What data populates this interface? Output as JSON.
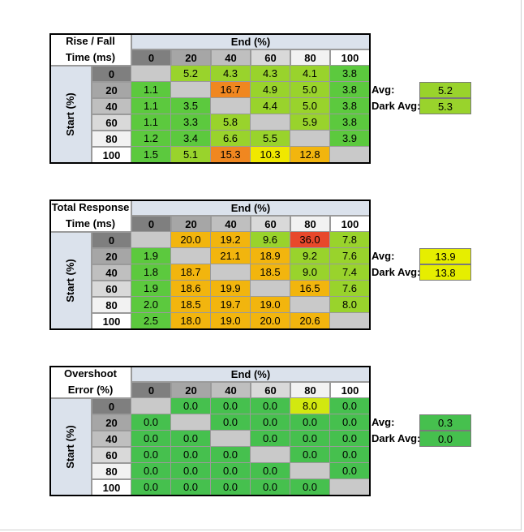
{
  "chart_data": [
    {
      "type": "table",
      "title_lines": [
        "Rise / Fall",
        "Time (ms)"
      ],
      "col_header": "End (%)",
      "row_header": "Start (%)",
      "cols": [
        "0",
        "20",
        "40",
        "60",
        "80",
        "100"
      ],
      "rows": [
        "0",
        "20",
        "40",
        "60",
        "80",
        "100"
      ],
      "values": [
        [
          "",
          "5.2",
          "4.3",
          "4.3",
          "4.1",
          "3.8"
        ],
        [
          "1.1",
          "",
          "16.7",
          "4.9",
          "5.0",
          "3.8"
        ],
        [
          "1.1",
          "3.5",
          "",
          "4.4",
          "5.0",
          "3.8"
        ],
        [
          "1.1",
          "3.3",
          "5.8",
          "",
          "5.9",
          "3.8"
        ],
        [
          "1.2",
          "3.4",
          "6.6",
          "5.5",
          "",
          "3.9"
        ],
        [
          "1.5",
          "5.1",
          "15.3",
          "10.3",
          "12.8",
          ""
        ]
      ],
      "colors": [
        [
          "#c9c9c9",
          "#99d32c",
          "#99d32c",
          "#99d32c",
          "#99d32c",
          "#5cc93e"
        ],
        [
          "#5cc93e",
          "#c9c9c9",
          "#f08720",
          "#99d32c",
          "#99d32c",
          "#5cc93e"
        ],
        [
          "#5cc93e",
          "#5cc93e",
          "#c9c9c9",
          "#99d32c",
          "#99d32c",
          "#5cc93e"
        ],
        [
          "#5cc93e",
          "#5cc93e",
          "#99d32c",
          "#c9c9c9",
          "#99d32c",
          "#5cc93e"
        ],
        [
          "#5cc93e",
          "#5cc93e",
          "#99d32c",
          "#99d32c",
          "#c9c9c9",
          "#5cc93e"
        ],
        [
          "#5cc93e",
          "#99d32c",
          "#f08720",
          "#f0e800",
          "#f2b50e",
          "#c9c9c9"
        ]
      ],
      "avg_label": "Avg:",
      "avg_value": "5.2",
      "avg_color": "#99d32c",
      "dark_avg_label": "Dark Avg:",
      "dark_avg_value": "5.3",
      "dark_avg_color": "#99d32c"
    },
    {
      "type": "table",
      "title_lines": [
        "Total Response",
        "Time (ms)"
      ],
      "col_header": "End (%)",
      "row_header": "Start (%)",
      "cols": [
        "0",
        "20",
        "40",
        "60",
        "80",
        "100"
      ],
      "rows": [
        "0",
        "20",
        "40",
        "60",
        "80",
        "100"
      ],
      "values": [
        [
          "",
          "20.0",
          "19.2",
          "9.6",
          "36.0",
          "7.8"
        ],
        [
          "1.9",
          "",
          "21.1",
          "18.9",
          "9.2",
          "7.6"
        ],
        [
          "1.8",
          "18.7",
          "",
          "18.5",
          "9.0",
          "7.4"
        ],
        [
          "1.9",
          "18.6",
          "19.9",
          "",
          "16.5",
          "7.6"
        ],
        [
          "2.0",
          "18.5",
          "19.7",
          "19.0",
          "",
          "8.0"
        ],
        [
          "2.5",
          "18.0",
          "19.0",
          "20.0",
          "20.6",
          ""
        ]
      ],
      "colors": [
        [
          "#c9c9c9",
          "#f2b50e",
          "#f2b50e",
          "#99d32c",
          "#e8482b",
          "#99d32c"
        ],
        [
          "#5cc93e",
          "#c9c9c9",
          "#f2b50e",
          "#f2b50e",
          "#99d32c",
          "#99d32c"
        ],
        [
          "#5cc93e",
          "#f2b50e",
          "#c9c9c9",
          "#f2b50e",
          "#99d32c",
          "#99d32c"
        ],
        [
          "#5cc93e",
          "#f2b50e",
          "#f2b50e",
          "#c9c9c9",
          "#f2b50e",
          "#99d32c"
        ],
        [
          "#5cc93e",
          "#f2b50e",
          "#f2b50e",
          "#f2b50e",
          "#c9c9c9",
          "#99d32c"
        ],
        [
          "#5cc93e",
          "#f2b50e",
          "#f2b50e",
          "#f2b50e",
          "#f2b50e",
          "#c9c9c9"
        ]
      ],
      "avg_label": "Avg:",
      "avg_value": "13.9",
      "avg_color": "#e6ee00",
      "dark_avg_label": "Dark Avg:",
      "dark_avg_value": "13.8",
      "dark_avg_color": "#e6ee00"
    },
    {
      "type": "table",
      "title_lines": [
        "Overshoot",
        "Error (%)"
      ],
      "col_header": "End (%)",
      "row_header": "Start (%)",
      "cols": [
        "0",
        "20",
        "40",
        "60",
        "80",
        "100"
      ],
      "rows": [
        "0",
        "20",
        "40",
        "60",
        "80",
        "100"
      ],
      "values": [
        [
          "",
          "0.0",
          "0.0",
          "0.0",
          "8.0",
          "0.0"
        ],
        [
          "0.0",
          "",
          "0.0",
          "0.0",
          "0.0",
          "0.0"
        ],
        [
          "0.0",
          "0.0",
          "",
          "0.0",
          "0.0",
          "0.0"
        ],
        [
          "0.0",
          "0.0",
          "0.0",
          "",
          "0.0",
          "0.0"
        ],
        [
          "0.0",
          "0.0",
          "0.0",
          "0.0",
          "",
          "0.0"
        ],
        [
          "0.0",
          "0.0",
          "0.0",
          "0.0",
          "0.0",
          ""
        ]
      ],
      "colors": [
        [
          "#c9c9c9",
          "#46c04e",
          "#46c04e",
          "#46c04e",
          "#d2e810",
          "#46c04e"
        ],
        [
          "#46c04e",
          "#c9c9c9",
          "#46c04e",
          "#46c04e",
          "#46c04e",
          "#46c04e"
        ],
        [
          "#46c04e",
          "#46c04e",
          "#c9c9c9",
          "#46c04e",
          "#46c04e",
          "#46c04e"
        ],
        [
          "#46c04e",
          "#46c04e",
          "#46c04e",
          "#c9c9c9",
          "#46c04e",
          "#46c04e"
        ],
        [
          "#46c04e",
          "#46c04e",
          "#46c04e",
          "#46c04e",
          "#c9c9c9",
          "#46c04e"
        ],
        [
          "#46c04e",
          "#46c04e",
          "#46c04e",
          "#46c04e",
          "#46c04e",
          "#c9c9c9"
        ]
      ],
      "avg_label": "Avg:",
      "avg_value": "0.3",
      "avg_color": "#46c04e",
      "dark_avg_label": "Dark Avg:",
      "dark_avg_value": "0.0",
      "dark_avg_color": "#46c04e"
    }
  ],
  "colors": {
    "header_band": "#dbe2ec",
    "col_header_shades": [
      "#7f7f7f",
      "#a6a6a6",
      "#bfbfbf",
      "#d9d9d9",
      "#f2f2f2",
      "#ffffff"
    ],
    "row_header_shades": [
      "#7f7f7f",
      "#a6a6a6",
      "#bfbfbf",
      "#d9d9d9",
      "#f2f2f2",
      "#ffffff"
    ]
  }
}
